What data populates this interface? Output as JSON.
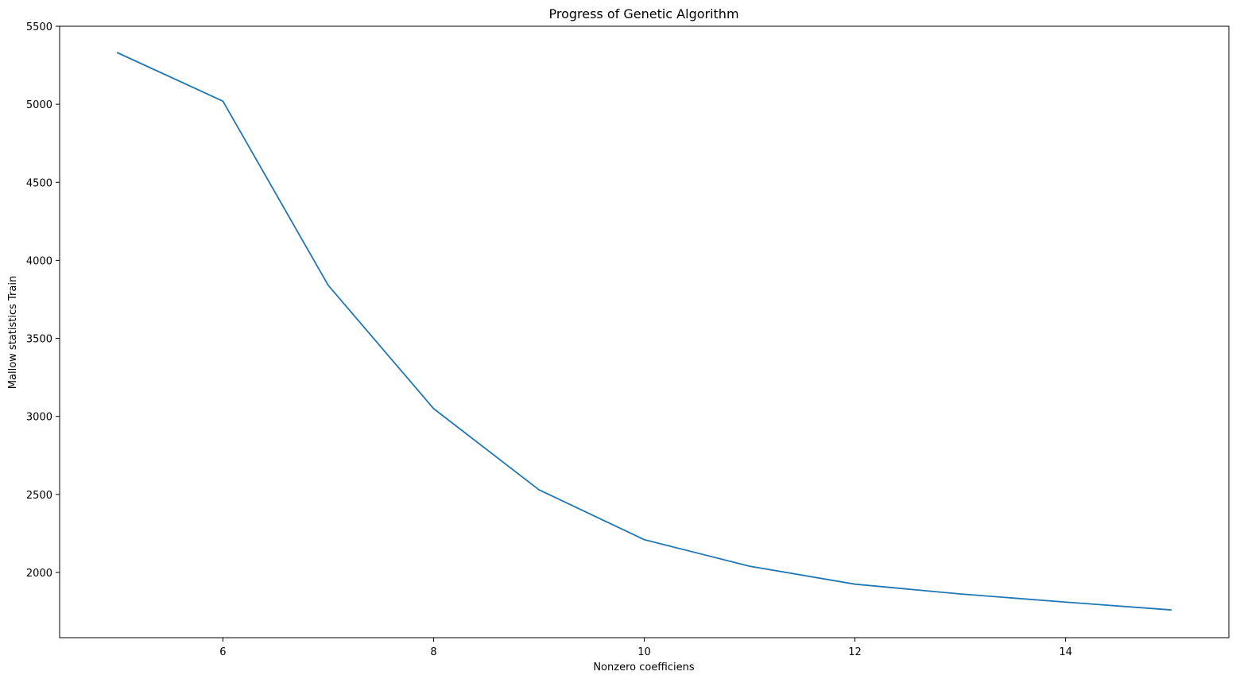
{
  "chart_data": {
    "type": "line",
    "title": "Progress of Genetic Algorithm",
    "xlabel": "Nonzero coefficiens",
    "ylabel": "Mallow statistics Train",
    "x": [
      5,
      6,
      7,
      8,
      9,
      10,
      11,
      12,
      13,
      14,
      15
    ],
    "series": [
      {
        "values": [
          5330,
          5020,
          3840,
          3050,
          2530,
          2210,
          2040,
          1925,
          1862,
          1810,
          1760
        ],
        "color": "#1f77b4"
      }
    ],
    "xlim": [
      4.45,
      15.55
    ],
    "ylim": [
      1582,
      5500
    ],
    "xticks": [
      6,
      8,
      10,
      12,
      14
    ],
    "xtick_labels": [
      "6",
      "8",
      "10",
      "12",
      "14"
    ],
    "yticks": [
      2000,
      2500,
      3000,
      3500,
      4000,
      4500,
      5000,
      5500
    ],
    "ytick_labels": [
      "2000",
      "2500",
      "3000",
      "3500",
      "4000",
      "4500",
      "5000",
      "5500"
    ],
    "grid": false,
    "legend": false
  }
}
